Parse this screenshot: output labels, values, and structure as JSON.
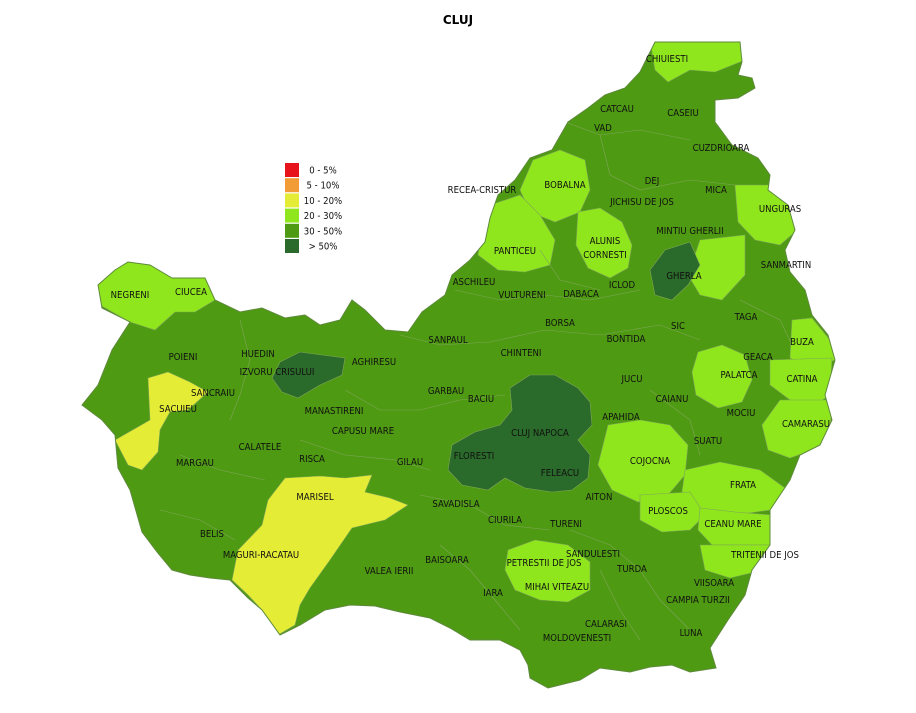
{
  "map": {
    "title": "CLUJ",
    "colors": {
      "border": "#7fa65a",
      "outer_border": "#5e8a3c"
    },
    "legend": [
      {
        "label": "0 - 5%",
        "color": "#e8141b"
      },
      {
        "label": "5 - 10%",
        "color": "#f29c38"
      },
      {
        "label": "10 - 20%",
        "color": "#e4ec35"
      },
      {
        "label": "20 - 30%",
        "color": "#8fe61c"
      },
      {
        "label": "30 - 50%",
        "color": "#4e9a12"
      },
      {
        "label": "> 50%",
        "color": "#2a6a2a"
      }
    ],
    "localities": [
      "CHIUIESTI",
      "CATCAU",
      "CASEIU",
      "VAD",
      "CUZDRIOARA",
      "DEJ",
      "MICA",
      "RECEA-CRISTUR",
      "BOBALNA",
      "JICHISU DE JOS",
      "UNGURAS",
      "ALUNIS",
      "CORNESTI",
      "MINTIU GHERLII",
      "PANTICEU",
      "GHERLA",
      "SANMARTIN",
      "NEGRENI",
      "CIUCEA",
      "ASCHILEU",
      "VULTURENI",
      "DABACA",
      "ICLOD",
      "TAGA",
      "BORSA",
      "SIC",
      "BUZA",
      "POIENI",
      "HUEDIN",
      "SANPAUL",
      "CHINTENI",
      "BONTIDA",
      "GEACA",
      "IZVORU CRISULUI",
      "AGHIRESU",
      "PALATCA",
      "CATINA",
      "SANCRAIU",
      "GARBAU",
      "JUCU",
      "SACUIEU",
      "BACIU",
      "MANASTIRENI",
      "CAIANU",
      "MOCIU",
      "APAHIDA",
      "CAPUSU MARE",
      "CLUJ NAPOCA",
      "CAMARASU",
      "CALATELE",
      "SUATU",
      "RISCA",
      "GILAU",
      "FLORESTI",
      "COJOCNA",
      "MARGAU",
      "FELEACU",
      "FRATA",
      "MARISEL",
      "AITON",
      "SAVADISLA",
      "PLOSCOS",
      "CIURILA",
      "TURENI",
      "CEANU MARE",
      "BELIS",
      "MAGURI-RACATAU",
      "SANDULESTI",
      "TRITENII DE JOS",
      "PETRESTII DE JOS",
      "BAISOARA",
      "TURDA",
      "VALEA IERII",
      "MIHAI VITEAZU",
      "VIISOARA",
      "IARA",
      "CAMPIA TURZII",
      "CALARASI",
      "LUNA",
      "MOLDOVENESTI"
    ]
  }
}
